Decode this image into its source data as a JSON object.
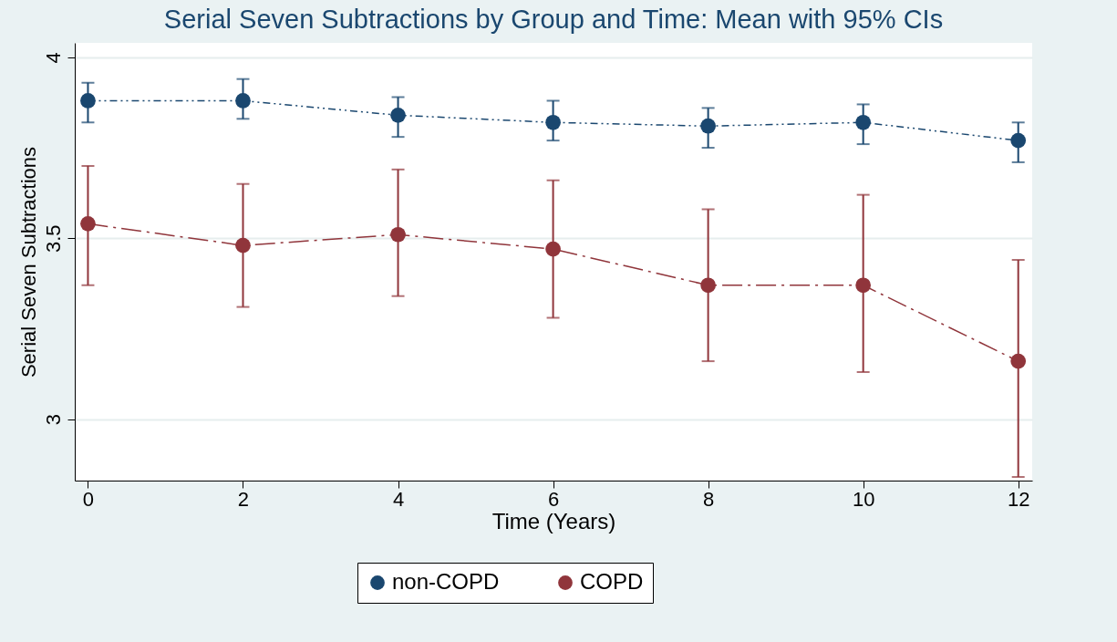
{
  "chart_data": {
    "type": "line",
    "title": "Serial Seven Subtractions by Group and Time: Mean with 95% CIs",
    "xlabel": "Time (Years)",
    "ylabel": "Serial Seven Subtractions",
    "x": [
      0,
      2,
      4,
      6,
      8,
      10,
      12
    ],
    "series": [
      {
        "name": "non-COPD",
        "color": "#1a476f",
        "line_style": "dotted",
        "values": [
          3.88,
          3.88,
          3.84,
          3.82,
          3.81,
          3.82,
          3.77
        ],
        "errors": [
          [
            3.82,
            3.93
          ],
          [
            3.83,
            3.94
          ],
          [
            3.78,
            3.89
          ],
          [
            3.77,
            3.88
          ],
          [
            3.75,
            3.86
          ],
          [
            3.76,
            3.87
          ],
          [
            3.71,
            3.82
          ]
        ]
      },
      {
        "name": "COPD",
        "color": "#90353b",
        "line_style": "dashed",
        "values": [
          3.54,
          3.48,
          3.51,
          3.47,
          3.37,
          3.37,
          3.16
        ],
        "errors": [
          [
            3.37,
            3.7
          ],
          [
            3.31,
            3.65
          ],
          [
            3.34,
            3.69
          ],
          [
            3.28,
            3.66
          ],
          [
            3.16,
            3.58
          ],
          [
            3.13,
            3.62
          ],
          [
            2.84,
            3.44
          ]
        ]
      }
    ],
    "xlim": [
      -0.17,
      12.18
    ],
    "xticks": [
      0,
      2,
      4,
      6,
      8,
      10,
      12
    ],
    "ylim": [
      2.83,
      4.04
    ],
    "yticks": [
      3,
      3.5,
      4
    ],
    "grid": "y",
    "legend": "bottom",
    "marker": "circle"
  }
}
